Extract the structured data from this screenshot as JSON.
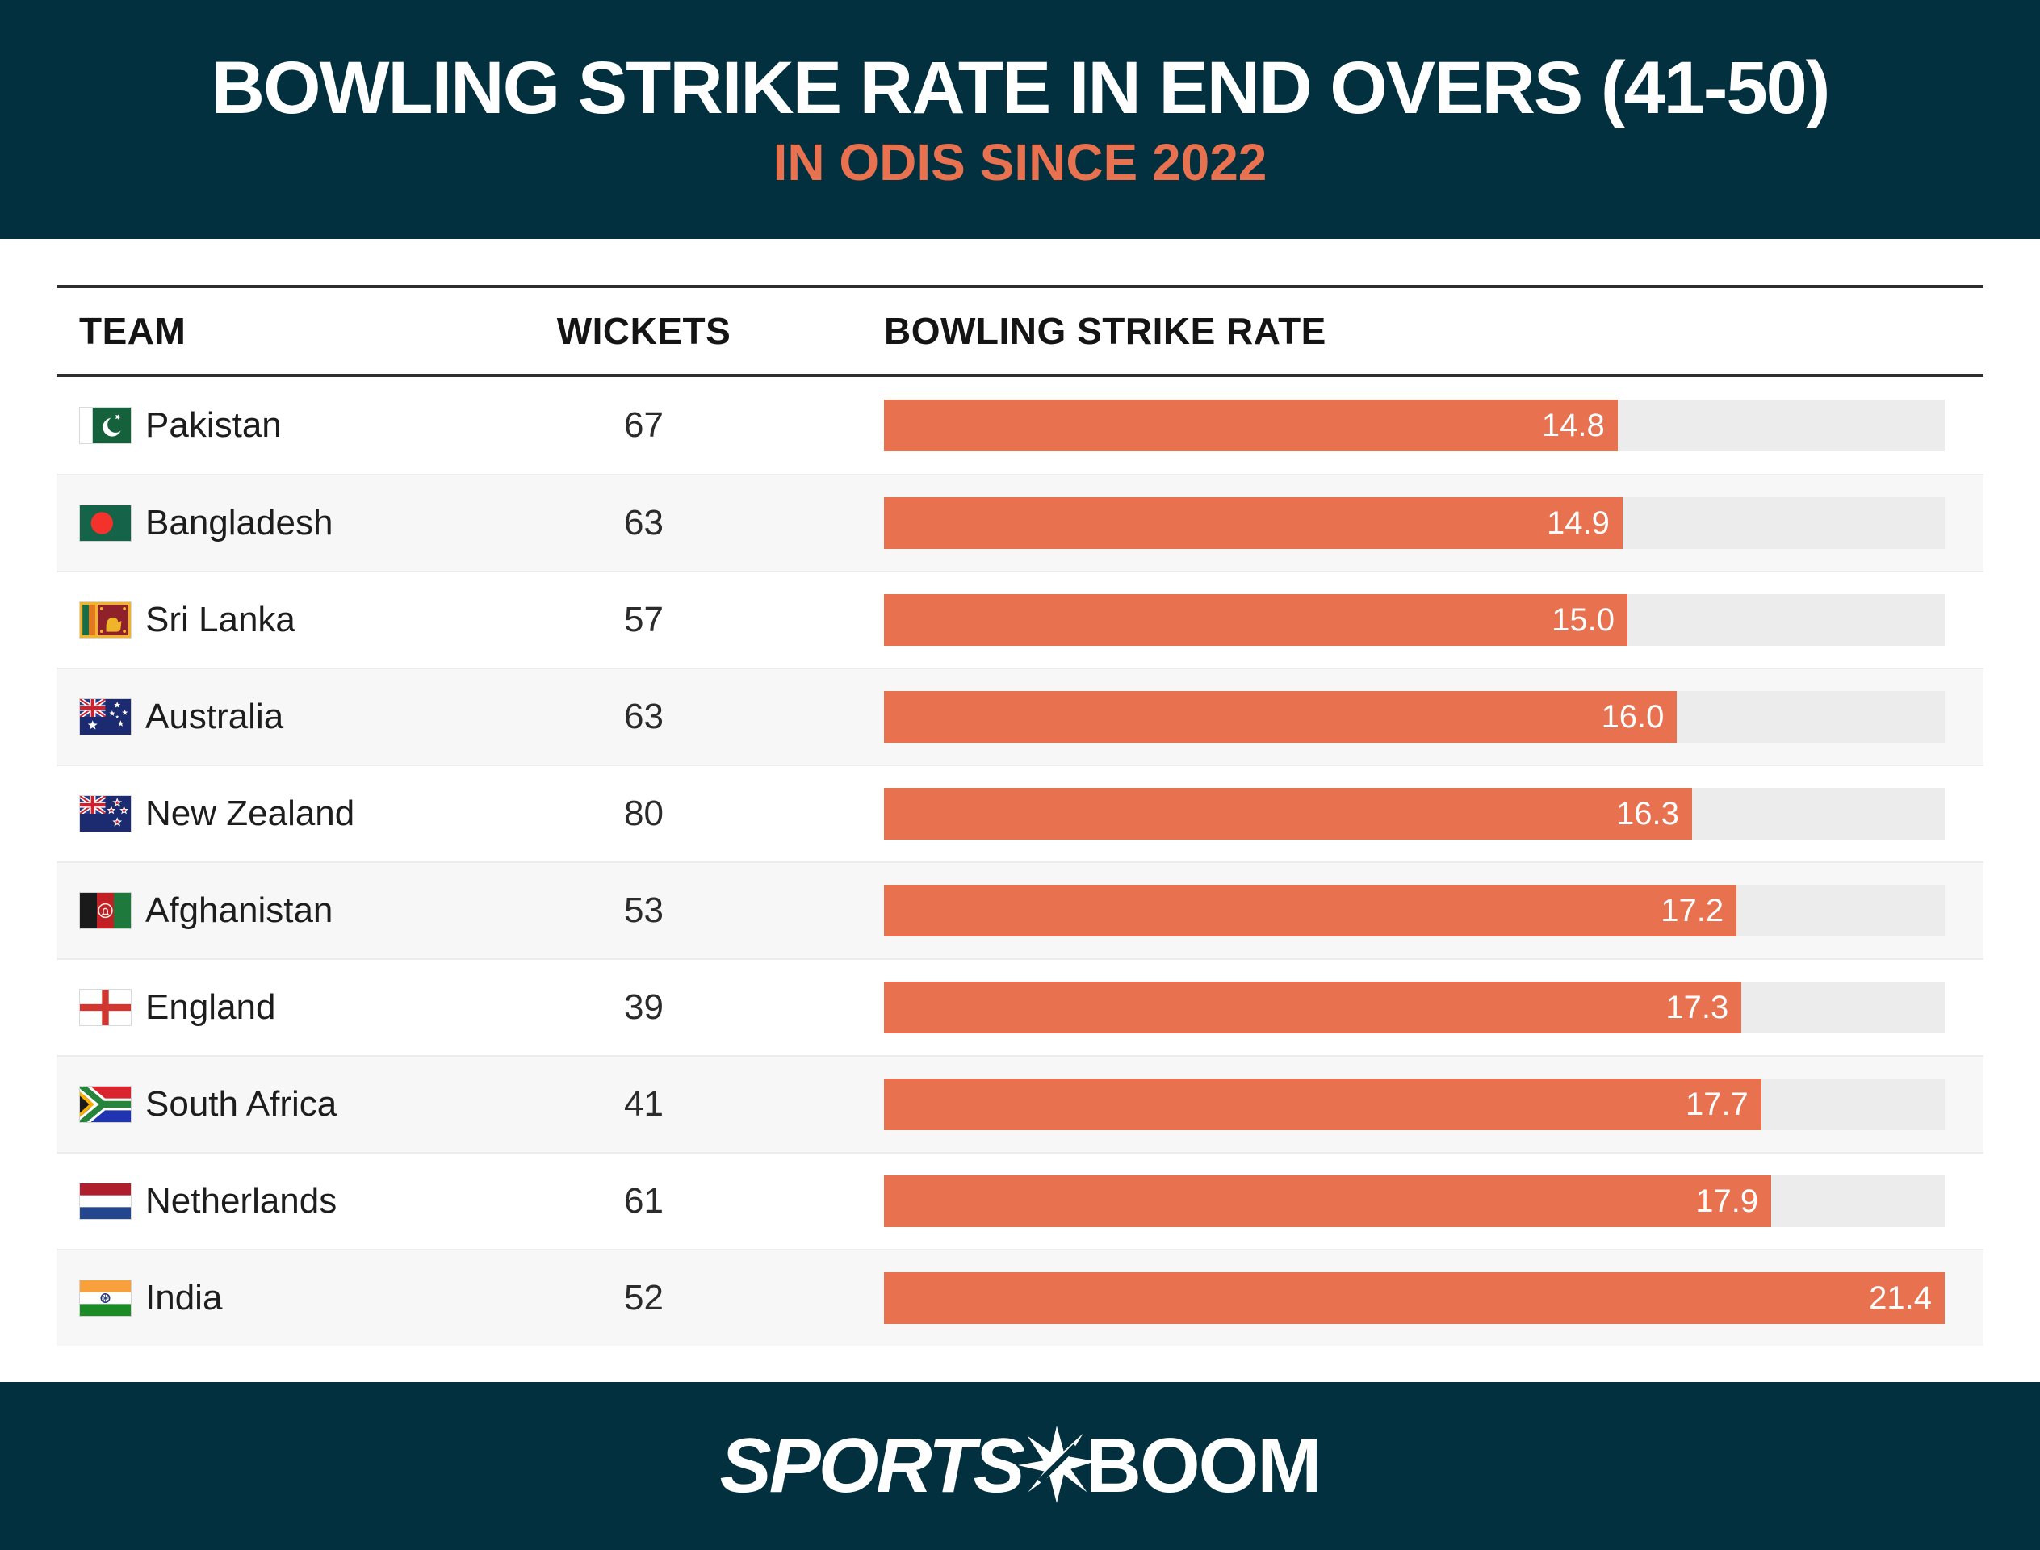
{
  "header": {
    "title": "BOWLING STRIKE RATE IN END OVERS (41-50)",
    "subtitle": "IN ODIS SINCE 2022"
  },
  "table": {
    "columns": [
      "TEAM",
      "WICKETS",
      "BOWLING STRIKE RATE"
    ],
    "rows": [
      {
        "team": "Pakistan",
        "flag": "pakistan",
        "wickets": "67",
        "strike_rate": "14.8"
      },
      {
        "team": "Bangladesh",
        "flag": "bangladesh",
        "wickets": "63",
        "strike_rate": "14.9"
      },
      {
        "team": "Sri Lanka",
        "flag": "srilanka",
        "wickets": "57",
        "strike_rate": "15.0"
      },
      {
        "team": "Australia",
        "flag": "australia",
        "wickets": "63",
        "strike_rate": "16.0"
      },
      {
        "team": "New Zealand",
        "flag": "newzealand",
        "wickets": "80",
        "strike_rate": "16.3"
      },
      {
        "team": "Afghanistan",
        "flag": "afghanistan",
        "wickets": "53",
        "strike_rate": "17.2"
      },
      {
        "team": "England",
        "flag": "england",
        "wickets": "39",
        "strike_rate": "17.3"
      },
      {
        "team": "South Africa",
        "flag": "southafrica",
        "wickets": "41",
        "strike_rate": "17.7"
      },
      {
        "team": "Netherlands",
        "flag": "netherlands",
        "wickets": "61",
        "strike_rate": "17.9"
      },
      {
        "team": "India",
        "flag": "india",
        "wickets": "52",
        "strike_rate": "21.4"
      }
    ]
  },
  "footer": {
    "brand_sports": "SPORTS",
    "brand_boom": "BOOM"
  },
  "colors": {
    "header_bg": "#03303e",
    "accent_orange": "#e8714f",
    "bar_fill": "#e8714f",
    "bar_track": "#ececec",
    "row_alt_bg": "#f7f7f7",
    "rule": "#2e2e2e",
    "value_label": "#ffffff"
  },
  "chart_data": {
    "type": "bar",
    "orientation": "horizontal",
    "title": "BOWLING STRIKE RATE IN END OVERS (41-50)",
    "subtitle": "IN ODIS SINCE 2022",
    "categories": [
      "Pakistan",
      "Bangladesh",
      "Sri Lanka",
      "Australia",
      "New Zealand",
      "Afghanistan",
      "England",
      "South Africa",
      "Netherlands",
      "India"
    ],
    "series": [
      {
        "name": "Wickets",
        "values": [
          67,
          63,
          57,
          63,
          80,
          53,
          39,
          41,
          61,
          52
        ]
      },
      {
        "name": "Bowling Strike Rate",
        "values": [
          14.8,
          14.9,
          15.0,
          16.0,
          16.3,
          17.2,
          17.3,
          17.7,
          17.9,
          21.4
        ]
      }
    ],
    "xlim": [
      0,
      21.4
    ],
    "grid": false,
    "legend": false,
    "value_labels": "inside-bar-end",
    "bar_color": "#e8714f",
    "track_color": "#ececec"
  }
}
